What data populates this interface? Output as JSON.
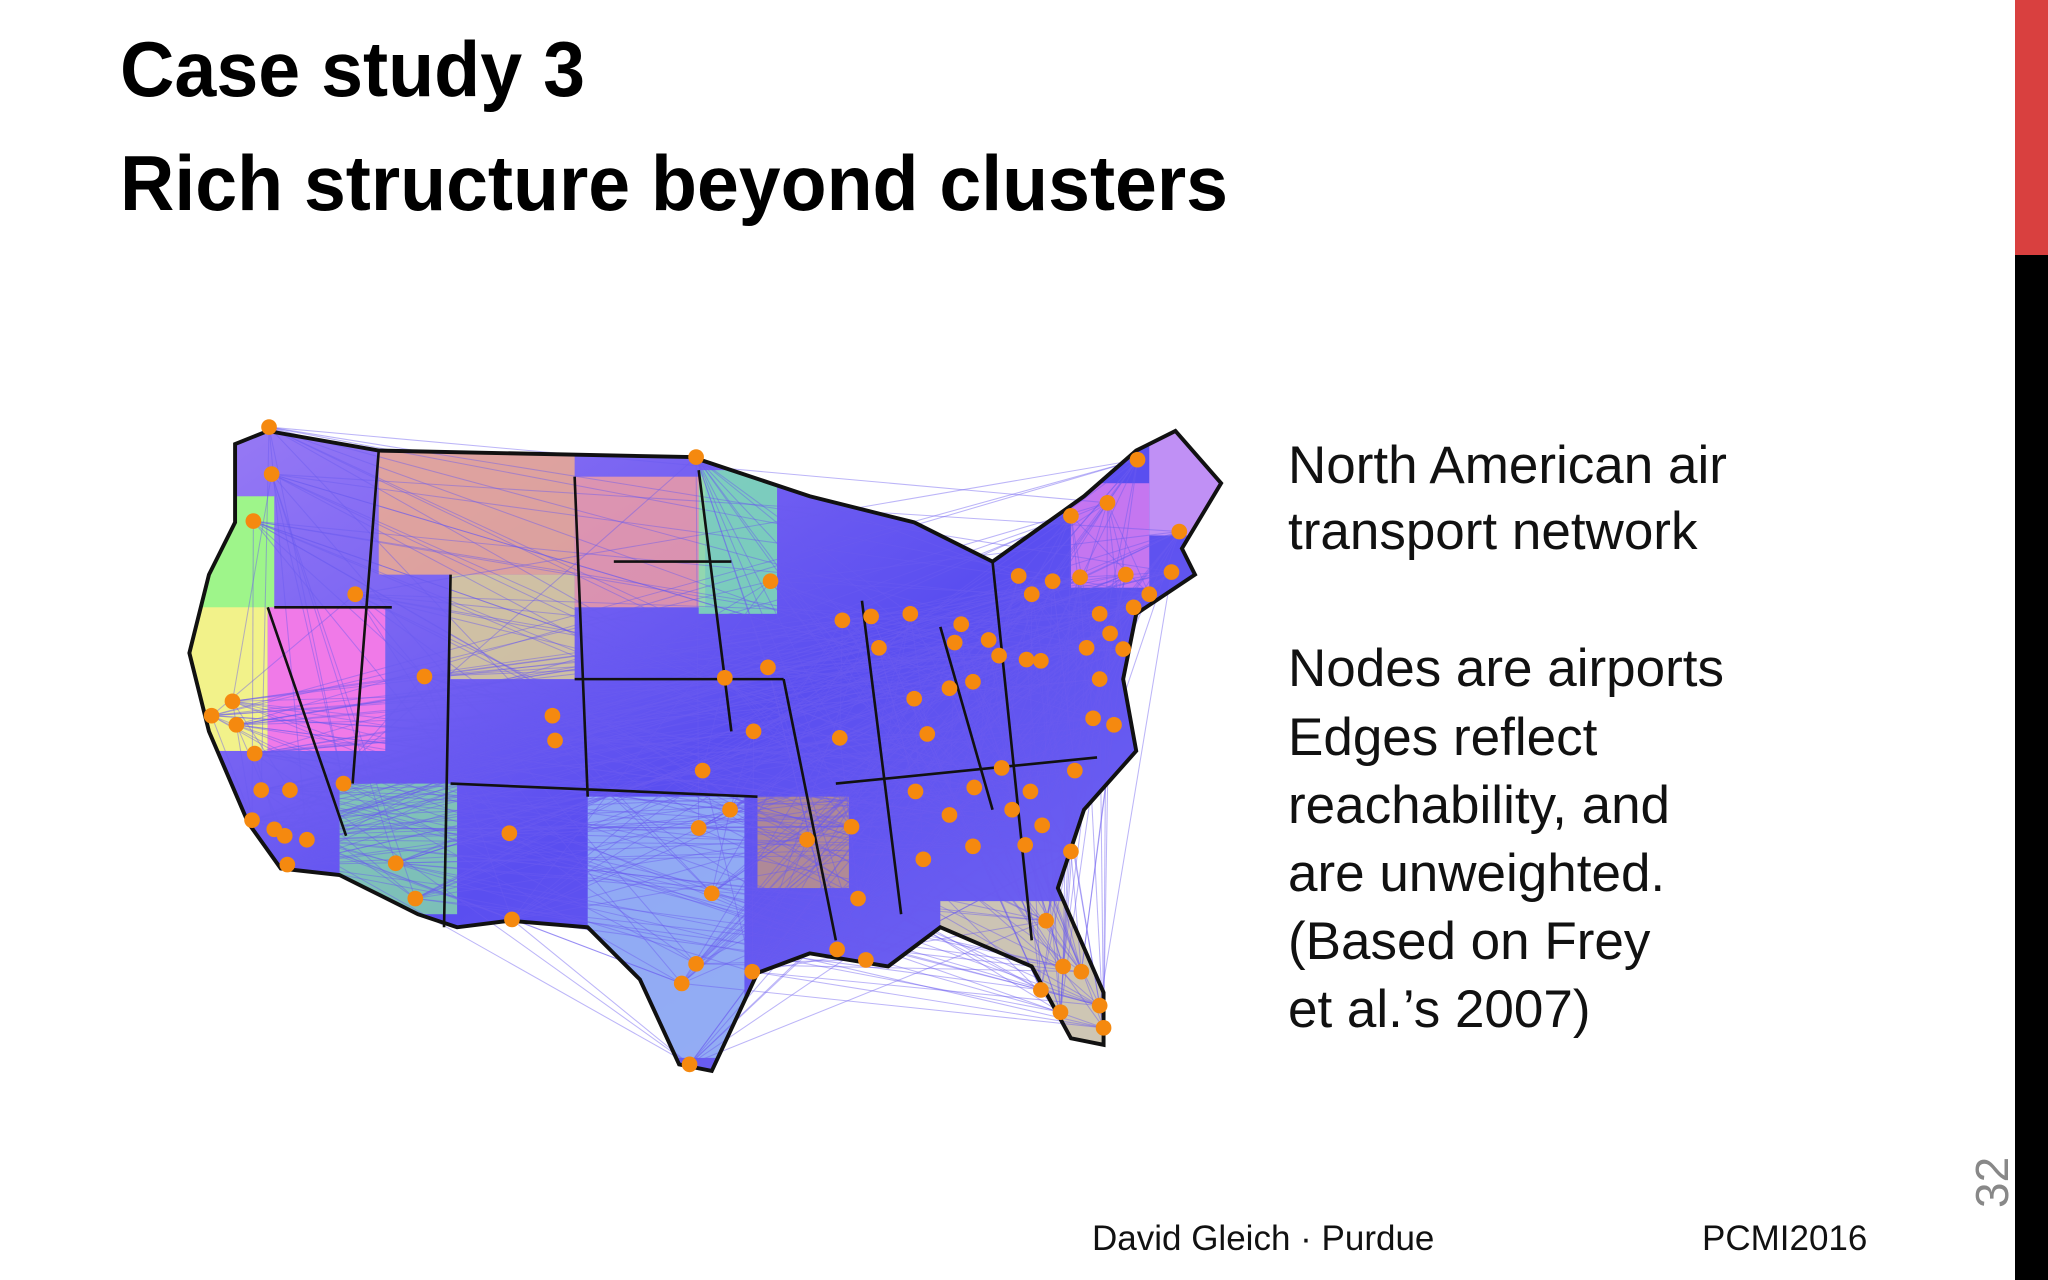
{
  "header": {
    "title_lines": [
      "Case study 3",
      "Rich structure beyond clusters"
    ]
  },
  "body": {
    "lines": [
      "North American air",
      "transport network",
      "Nodes are airports",
      "Edges reflect",
      "reachability, and",
      "are unweighted.",
      "(Based on Frey",
      "et al.’s 2007)"
    ]
  },
  "footer": {
    "author": "David Gleich · Purdue",
    "event": "PCMI2016",
    "page_number": 32
  }
}
